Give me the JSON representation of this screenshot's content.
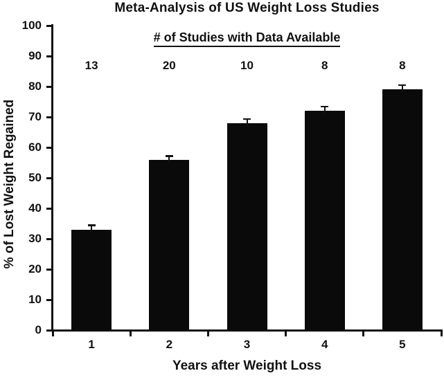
{
  "chart_data": {
    "type": "bar",
    "title": "Meta-Analysis of US Weight Loss Studies",
    "annotation_header": "# of Studies with Data Available",
    "categories": [
      "1",
      "2",
      "3",
      "4",
      "5"
    ],
    "values": [
      33,
      56,
      68,
      72,
      79
    ],
    "error_bars": [
      1.5,
      1.2,
      1.4,
      1.5,
      1.5
    ],
    "studies_with_data": [
      "13",
      "20",
      "10",
      "8",
      "8"
    ],
    "xlabel": "Years after Weight Loss",
    "ylabel": "% of Lost Weight Regained",
    "ylim": [
      0,
      100
    ],
    "yticks": [
      0,
      10,
      20,
      30,
      40,
      50,
      60,
      70,
      80,
      90,
      100
    ],
    "grid": false,
    "legend": "none",
    "bar_color": "#0a0a0a",
    "text_color": "#111111",
    "background_color": "#ffffff"
  }
}
